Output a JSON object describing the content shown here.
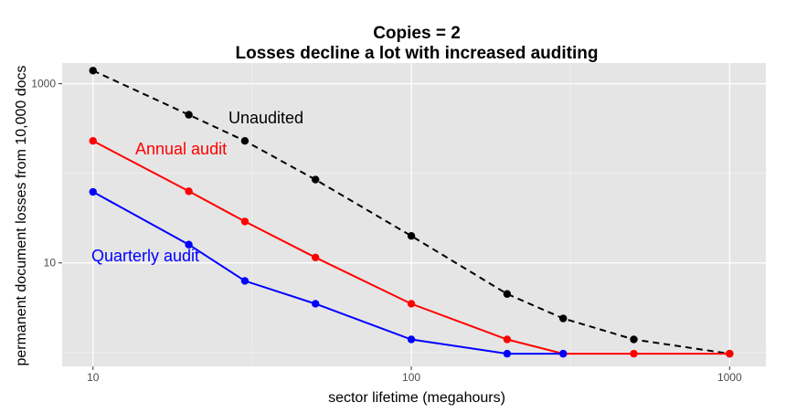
{
  "chart_data": {
    "type": "line",
    "title": "Copies = 2",
    "subtitle": "Losses decline a lot with increased auditing",
    "xlabel": "sector lifetime (megahours)",
    "ylabel": "permanent document losses from 10,000 docs",
    "x_scale": "log",
    "y_scale": "log",
    "xlim": [
      8,
      1300
    ],
    "ylim": [
      0.7,
      1700
    ],
    "x_ticks": [
      10,
      100,
      1000
    ],
    "x_tick_labels": [
      "10",
      "100",
      "1000"
    ],
    "y_ticks": [
      10,
      1000
    ],
    "y_tick_labels": [
      "10",
      "1000"
    ],
    "grid": true,
    "legend": "none",
    "series": [
      {
        "name": "Unaudited",
        "color": "#000000",
        "line_style": "dashed",
        "x": [
          10,
          20,
          30,
          50,
          100,
          200,
          300,
          500,
          1000
        ],
        "y": [
          1400,
          450,
          230,
          85,
          20,
          4.5,
          2.4,
          1.4,
          0.97
        ]
      },
      {
        "name": "Annual audit",
        "color": "#ff0000",
        "line_style": "solid",
        "x": [
          10,
          20,
          30,
          50,
          100,
          200,
          300,
          500,
          1000
        ],
        "y": [
          230,
          63,
          29,
          11.5,
          3.5,
          1.4,
          0.97,
          0.97,
          0.97
        ]
      },
      {
        "name": "Quarterly audit",
        "color": "#0000ff",
        "line_style": "solid",
        "x": [
          10,
          20,
          30,
          50,
          100,
          200,
          300
        ],
        "y": [
          62,
          16,
          6.3,
          3.5,
          1.4,
          0.97,
          0.97
        ]
      }
    ],
    "annotations": [
      {
        "text": "Unaudited",
        "color": "#000000",
        "series": "Unaudited"
      },
      {
        "text": "Annual audit",
        "color": "#ff0000",
        "series": "Annual audit"
      },
      {
        "text": "Quarterly audit",
        "color": "#0000ff",
        "series": "Quarterly audit"
      }
    ]
  }
}
